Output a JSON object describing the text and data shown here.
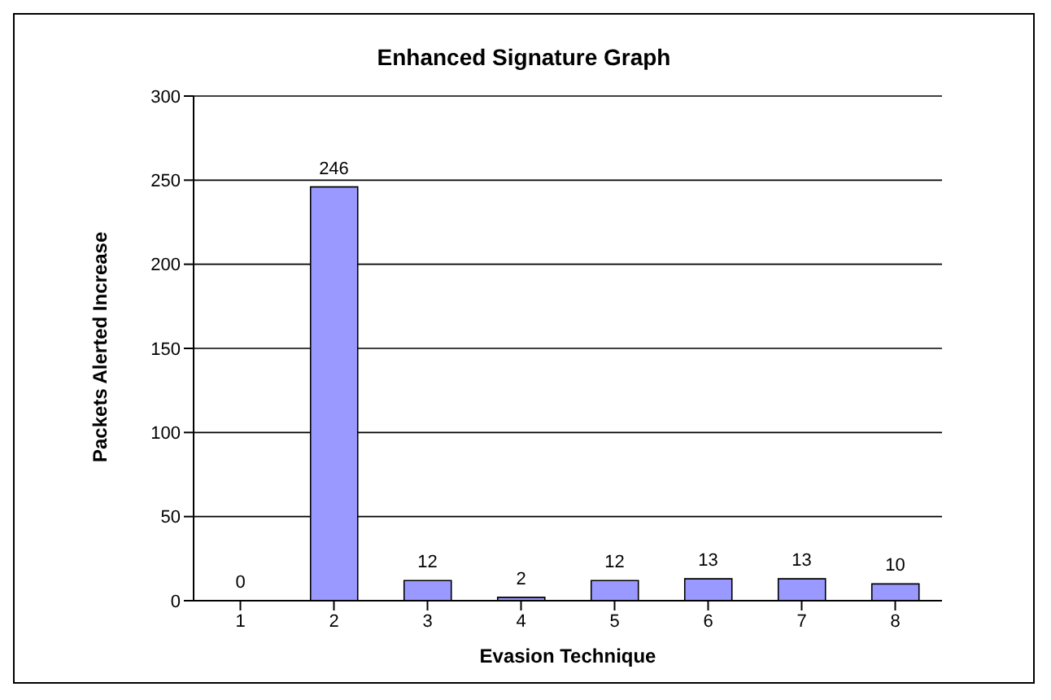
{
  "chart_data": {
    "type": "bar",
    "title": "Enhanced Signature Graph",
    "xlabel": "Evasion Technique",
    "ylabel": "Packets Alerted Increase",
    "categories": [
      "1",
      "2",
      "3",
      "4",
      "5",
      "6",
      "7",
      "8"
    ],
    "values": [
      0,
      246,
      12,
      2,
      12,
      13,
      13,
      10
    ],
    "color": "#9999ff",
    "ylim": [
      0,
      300
    ],
    "yticks": [
      0,
      50,
      100,
      150,
      200,
      250,
      300
    ],
    "grid": "y",
    "data_labels": true
  }
}
